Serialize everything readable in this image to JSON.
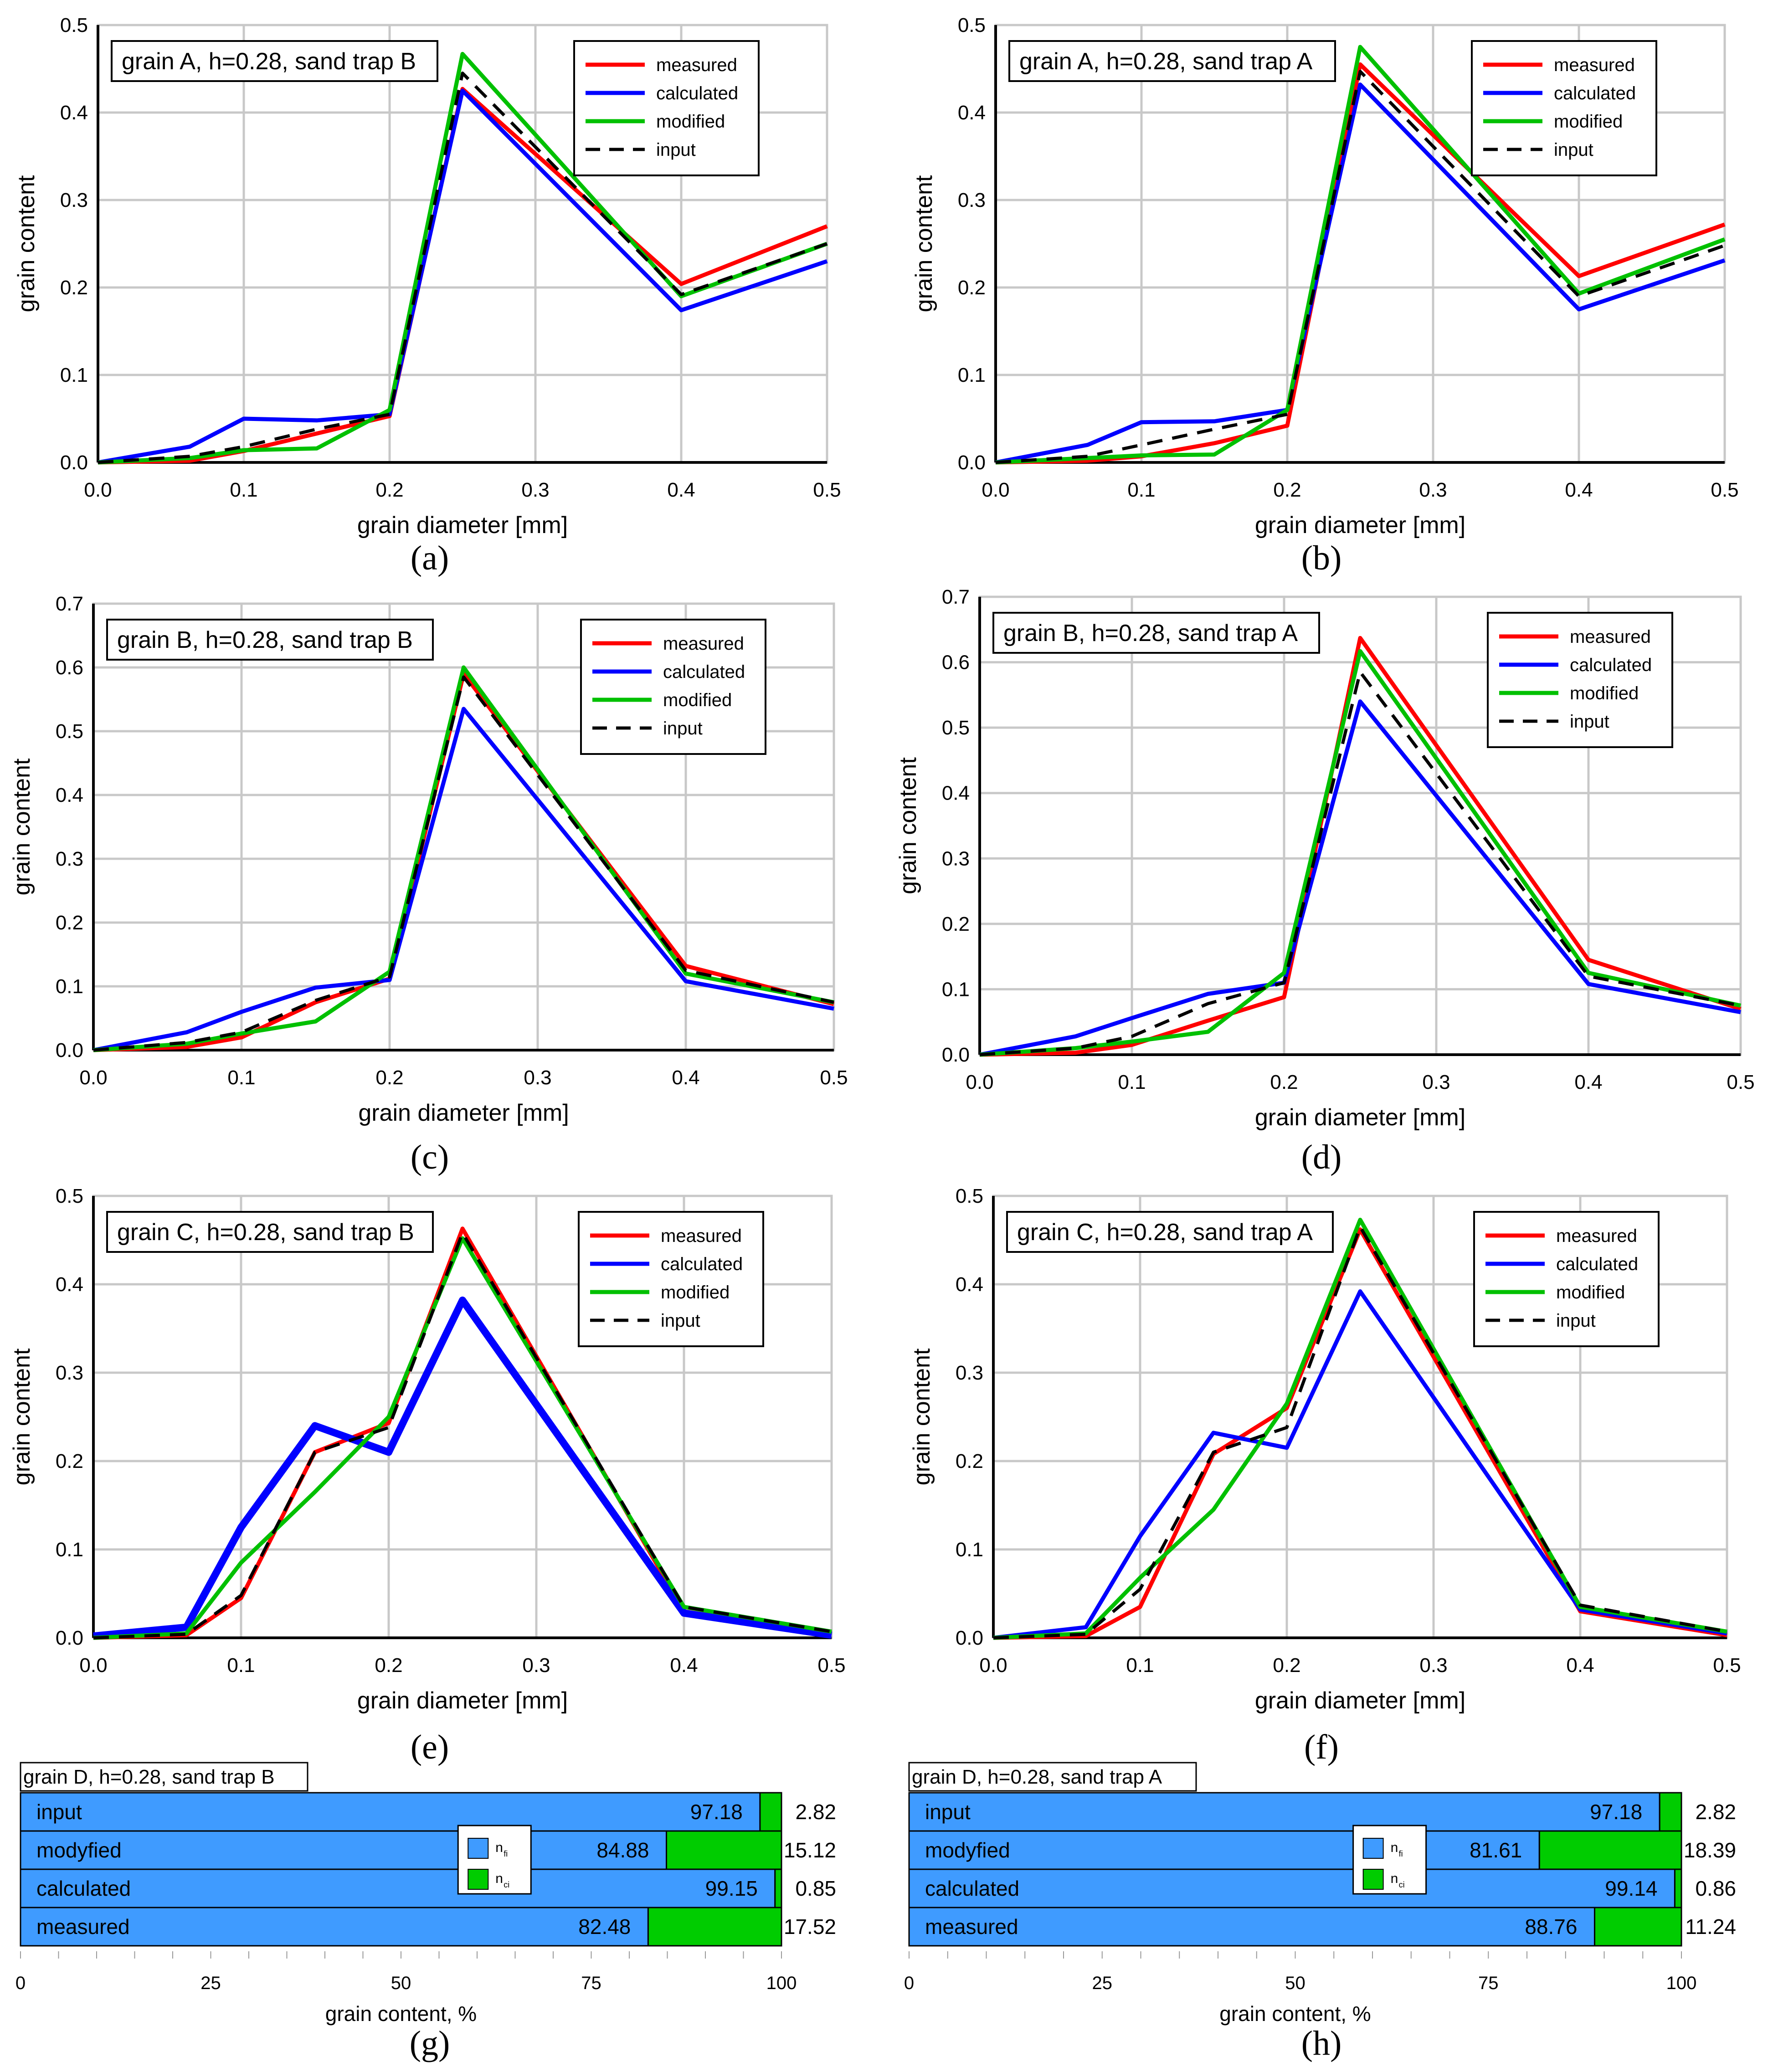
{
  "figure": {
    "series_styles": {
      "measured": {
        "color": "#ff0000",
        "dash": false
      },
      "calculated": {
        "color": "#0000ff",
        "dash": false
      },
      "modified": {
        "color": "#00c000",
        "dash": false
      },
      "input": {
        "color": "#000000",
        "dash": true
      }
    },
    "bar_colors": {
      "n_fi": "#3f9bff",
      "n_ci": "#00cc00"
    },
    "legend_order": [
      "measured",
      "calculated",
      "modified",
      "input"
    ],
    "legend_labels": {
      "measured": "measured",
      "calculated": "calculated",
      "modified": "modified",
      "input": "input"
    }
  },
  "chart_data": [
    {
      "type": "line",
      "caption": "(a)",
      "title": "grain A, h=0.28, sand trap B",
      "xlabel": "grain diameter [mm]",
      "ylabel": "grain content",
      "xlim": [
        0,
        0.5
      ],
      "ylim": [
        0,
        0.5
      ],
      "xticks": [
        "0.0",
        "0.1",
        "0.2",
        "0.3",
        "0.4",
        "0.5"
      ],
      "yticks": [
        "0.0",
        "0.1",
        "0.2",
        "0.3",
        "0.4",
        "0.5"
      ],
      "x": [
        0,
        0.063,
        0.1,
        0.15,
        0.2,
        0.25,
        0.4,
        0.5
      ],
      "series": [
        {
          "name": "measured",
          "values": [
            0.0,
            0.002,
            0.013,
            0.033,
            0.053,
            0.427,
            0.204,
            0.27
          ]
        },
        {
          "name": "calculated",
          "values": [
            0.0,
            0.018,
            0.05,
            0.048,
            0.055,
            0.425,
            0.174,
            0.23
          ]
        },
        {
          "name": "modified",
          "values": [
            0.0,
            0.005,
            0.014,
            0.016,
            0.06,
            0.467,
            0.19,
            0.25
          ]
        },
        {
          "name": "input",
          "values": [
            0.0,
            0.007,
            0.018,
            0.038,
            0.055,
            0.445,
            0.192,
            0.25
          ]
        }
      ],
      "grid": true,
      "legend": "top-right"
    },
    {
      "type": "line",
      "caption": "(b)",
      "title": "grain A, h=0.28, sand trap A",
      "xlabel": "grain diameter [mm]",
      "ylabel": "grain content",
      "xlim": [
        0,
        0.5
      ],
      "ylim": [
        0,
        0.5
      ],
      "xticks": [
        "0.0",
        "0.1",
        "0.2",
        "0.3",
        "0.4",
        "0.5"
      ],
      "yticks": [
        "0.0",
        "0.1",
        "0.2",
        "0.3",
        "0.4",
        "0.5"
      ],
      "x": [
        0,
        0.063,
        0.1,
        0.15,
        0.2,
        0.25,
        0.4,
        0.5
      ],
      "series": [
        {
          "name": "measured",
          "values": [
            0.0,
            0.002,
            0.007,
            0.022,
            0.042,
            0.455,
            0.213,
            0.272
          ]
        },
        {
          "name": "calculated",
          "values": [
            0.0,
            0.02,
            0.046,
            0.047,
            0.06,
            0.432,
            0.175,
            0.231
          ]
        },
        {
          "name": "modified",
          "values": [
            0.0,
            0.005,
            0.008,
            0.009,
            0.06,
            0.475,
            0.193,
            0.255
          ]
        },
        {
          "name": "input",
          "values": [
            0.0,
            0.007,
            0.02,
            0.038,
            0.055,
            0.447,
            0.19,
            0.248
          ]
        }
      ],
      "grid": true,
      "legend": "top-right"
    },
    {
      "type": "line",
      "caption": "(c)",
      "title": "grain B, h=0.28, sand trap B",
      "xlabel": "grain diameter [mm]",
      "ylabel": "grain content",
      "xlim": [
        0,
        0.5
      ],
      "ylim": [
        0,
        0.7
      ],
      "xticks": [
        "0.0",
        "0.1",
        "0.2",
        "0.3",
        "0.4",
        "0.5"
      ],
      "yticks": [
        "0.0",
        "0.1",
        "0.2",
        "0.3",
        "0.4",
        "0.5",
        "0.6",
        "0.7"
      ],
      "x": [
        0,
        0.063,
        0.1,
        0.15,
        0.2,
        0.25,
        0.4,
        0.5
      ],
      "series": [
        {
          "name": "measured",
          "values": [
            0.0,
            0.005,
            0.02,
            0.075,
            0.112,
            0.59,
            0.132,
            0.072
          ]
        },
        {
          "name": "calculated",
          "values": [
            0.0,
            0.028,
            0.06,
            0.098,
            0.11,
            0.535,
            0.108,
            0.065
          ]
        },
        {
          "name": "modified",
          "values": [
            0.0,
            0.01,
            0.026,
            0.045,
            0.123,
            0.6,
            0.12,
            0.075
          ]
        },
        {
          "name": "input",
          "values": [
            0.0,
            0.012,
            0.028,
            0.078,
            0.115,
            0.585,
            0.125,
            0.075
          ]
        }
      ],
      "grid": true,
      "legend": "top-right"
    },
    {
      "type": "line",
      "caption": "(d)",
      "title": "grain B, h=0.28, sand trap A",
      "xlabel": "grain diameter [mm]",
      "ylabel": "grain content",
      "xlim": [
        0,
        0.5
      ],
      "ylim": [
        0,
        0.7
      ],
      "xticks": [
        "0.0",
        "0.1",
        "0.2",
        "0.3",
        "0.4",
        "0.5"
      ],
      "yticks": [
        "0.0",
        "0.1",
        "0.2",
        "0.3",
        "0.4",
        "0.5",
        "0.6",
        "0.7"
      ],
      "x": [
        0,
        0.063,
        0.1,
        0.15,
        0.2,
        0.25,
        0.4,
        0.5
      ],
      "series": [
        {
          "name": "measured",
          "values": [
            0.0,
            0.003,
            0.015,
            0.052,
            0.088,
            0.637,
            0.145,
            0.07
          ]
        },
        {
          "name": "calculated",
          "values": [
            0.0,
            0.028,
            0.056,
            0.093,
            0.11,
            0.54,
            0.108,
            0.065
          ]
        },
        {
          "name": "modified",
          "values": [
            0.0,
            0.01,
            0.02,
            0.035,
            0.125,
            0.617,
            0.125,
            0.075
          ]
        },
        {
          "name": "input",
          "values": [
            0.0,
            0.01,
            0.028,
            0.078,
            0.11,
            0.585,
            0.12,
            0.075
          ]
        }
      ],
      "grid": true,
      "legend": "top-right"
    },
    {
      "type": "line",
      "caption": "(e)",
      "title": "grain C, h=0.28, sand trap B",
      "xlabel": "grain diameter [mm]",
      "ylabel": "grain content",
      "xlim": [
        0,
        0.5
      ],
      "ylim": [
        0,
        0.5
      ],
      "xticks": [
        "0.0",
        "0.1",
        "0.2",
        "0.3",
        "0.4",
        "0.5"
      ],
      "yticks": [
        "0.0",
        "0.1",
        "0.2",
        "0.3",
        "0.4",
        "0.5"
      ],
      "x": [
        0,
        0.063,
        0.1,
        0.15,
        0.2,
        0.25,
        0.4,
        0.5
      ],
      "series": [
        {
          "name": "measured",
          "values": [
            0.0,
            0.003,
            0.045,
            0.21,
            0.243,
            0.463,
            0.03,
            0.005
          ]
        },
        {
          "name": "calculated",
          "values": [
            0.002,
            0.012,
            0.125,
            0.24,
            0.21,
            0.382,
            0.028,
            0.003
          ],
          "thick": true
        },
        {
          "name": "modified",
          "values": [
            0.0,
            0.005,
            0.085,
            0.165,
            0.25,
            0.452,
            0.035,
            0.007
          ]
        },
        {
          "name": "input",
          "values": [
            0.0,
            0.004,
            0.048,
            0.21,
            0.238,
            0.458,
            0.035,
            0.007
          ]
        }
      ],
      "grid": true,
      "legend": "top-right"
    },
    {
      "type": "line",
      "caption": "(f)",
      "title": "grain C, h=0.28, sand trap A",
      "xlabel": "grain diameter [mm]",
      "ylabel": "grain content",
      "xlim": [
        0,
        0.5
      ],
      "ylim": [
        0,
        0.5
      ],
      "xticks": [
        "0.0",
        "0.1",
        "0.2",
        "0.3",
        "0.4",
        "0.5"
      ],
      "yticks": [
        "0.0",
        "0.1",
        "0.2",
        "0.3",
        "0.4",
        "0.5"
      ],
      "x": [
        0,
        0.063,
        0.1,
        0.15,
        0.2,
        0.25,
        0.4,
        0.5
      ],
      "series": [
        {
          "name": "measured",
          "values": [
            0.0,
            0.002,
            0.035,
            0.208,
            0.26,
            0.462,
            0.03,
            0.003
          ]
        },
        {
          "name": "calculated",
          "values": [
            0.0,
            0.012,
            0.115,
            0.232,
            0.215,
            0.392,
            0.032,
            0.005
          ]
        },
        {
          "name": "modified",
          "values": [
            0.0,
            0.005,
            0.068,
            0.145,
            0.265,
            0.473,
            0.035,
            0.007
          ]
        },
        {
          "name": "input",
          "values": [
            0.0,
            0.004,
            0.055,
            0.21,
            0.238,
            0.465,
            0.037,
            0.007
          ]
        }
      ],
      "grid": true,
      "legend": "top-right"
    },
    {
      "type": "bar",
      "orientation": "horizontal-stacked",
      "caption": "(g)",
      "title": "grain D, h=0.28, sand trap B",
      "xlabel": "grain content, %",
      "xlim": [
        0,
        100
      ],
      "xticks": [
        "0",
        "25",
        "50",
        "75",
        "100"
      ],
      "categories": [
        "input",
        "modyfied",
        "calculated",
        "measured"
      ],
      "series": [
        {
          "name": "n_fi",
          "legend_main": "n",
          "legend_sub": "fi",
          "values": [
            97.18,
            84.88,
            99.15,
            82.48
          ],
          "labels": [
            "97.18",
            "84.88",
            "99.15",
            "82.48"
          ]
        },
        {
          "name": "n_ci",
          "legend_main": "n",
          "legend_sub": "ci",
          "values": [
            2.82,
            15.12,
            0.85,
            17.52
          ],
          "labels": [
            "2.82",
            "15.12",
            "0.85",
            "17.52"
          ]
        }
      ]
    },
    {
      "type": "bar",
      "orientation": "horizontal-stacked",
      "caption": "(h)",
      "title": "grain D, h=0.28, sand trap A",
      "xlabel": "grain content, %",
      "xlim": [
        0,
        100
      ],
      "xticks": [
        "0",
        "25",
        "50",
        "75",
        "100"
      ],
      "categories": [
        "input",
        "modyfied",
        "calculated",
        "measured"
      ],
      "series": [
        {
          "name": "n_fi",
          "legend_main": "n",
          "legend_sub": "fi",
          "values": [
            97.18,
            81.61,
            99.14,
            88.76
          ],
          "labels": [
            "97.18",
            "81.61",
            "99.14",
            "88.76"
          ]
        },
        {
          "name": "n_ci",
          "legend_main": "n",
          "legend_sub": "ci",
          "values": [
            2.82,
            18.39,
            0.86,
            11.24
          ],
          "labels": [
            "2.82",
            "18.39",
            "0.86",
            "11.24"
          ]
        }
      ]
    }
  ]
}
